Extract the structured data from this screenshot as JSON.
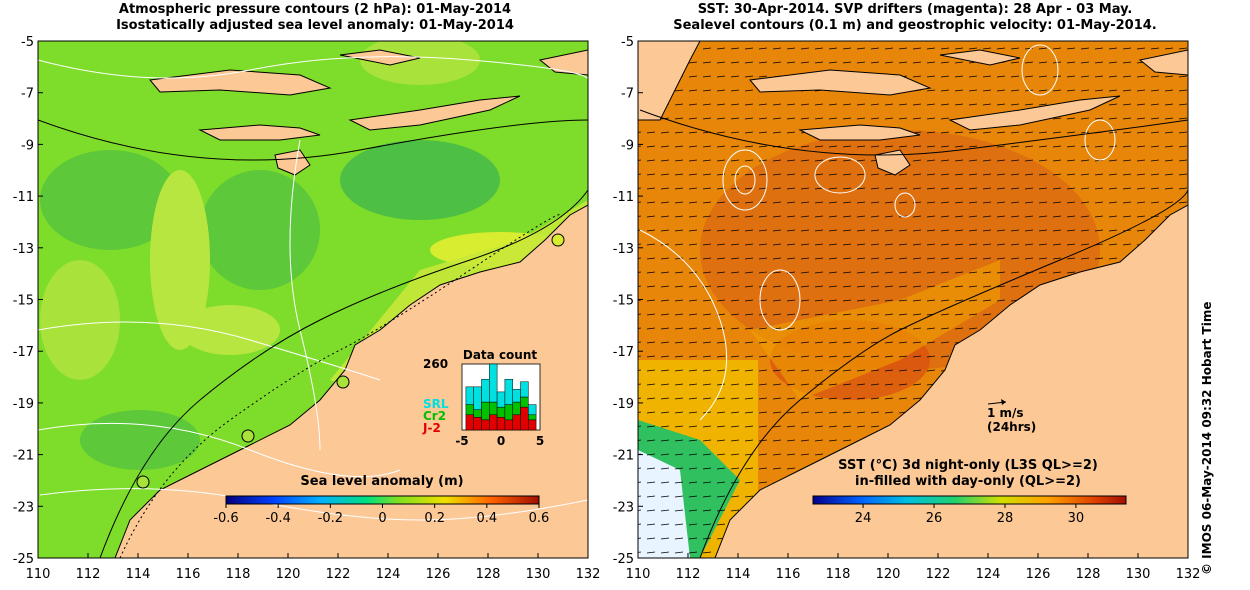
{
  "left_panel": {
    "title_line1": "Atmospheric pressure contours (2 hPa): 01-May-2014",
    "title_line2": "Isostatically adjusted sea level anomaly: 01-May-2014",
    "y_ticks": [
      "-5",
      "-7",
      "-9",
      "-11",
      "-13",
      "-15",
      "-17",
      "-19",
      "-21",
      "-23",
      "-25"
    ],
    "x_ticks": [
      "110",
      "112",
      "114",
      "116",
      "118",
      "120",
      "122",
      "124",
      "126",
      "128",
      "130",
      "132"
    ],
    "colorbar_label": "Sea level anomaly (m)",
    "colorbar_ticks": [
      "-0.6",
      "-0.4",
      "-0.2",
      "0",
      "0.2",
      "0.4",
      "0.6"
    ],
    "inset": {
      "title": "Data count",
      "y_max_label": "260",
      "x_ticks": [
        "-5",
        "0",
        "5"
      ],
      "legend": [
        {
          "label": "SRL",
          "color": "#00e0e0"
        },
        {
          "label": "Cr2",
          "color": "#00c000"
        },
        {
          "label": "J-2",
          "color": "#e00000"
        }
      ],
      "bins": [
        {
          "x": -4,
          "red": 60,
          "green": 40,
          "cyan": 70
        },
        {
          "x": -3,
          "red": 50,
          "green": 30,
          "cyan": 90
        },
        {
          "x": -2,
          "red": 40,
          "green": 70,
          "cyan": 90
        },
        {
          "x": -1,
          "red": 60,
          "green": 50,
          "cyan": 150
        },
        {
          "x": 0,
          "red": 50,
          "green": 40,
          "cyan": 60
        },
        {
          "x": 1,
          "red": 40,
          "green": 60,
          "cyan": 100
        },
        {
          "x": 2,
          "red": 60,
          "green": 50,
          "cyan": 50
        },
        {
          "x": 3,
          "red": 90,
          "green": 40,
          "cyan": 60
        },
        {
          "x": 4,
          "red": 40,
          "green": 20,
          "cyan": 40
        }
      ]
    }
  },
  "right_panel": {
    "title_line1": "SST: 30-Apr-2014. SVP drifters (magenta): 28 Apr - 03 May.",
    "title_line2": "Sealevel contours (0.1 m) and geostrophic velocity: 01-May-2014.",
    "y_ticks": [
      "-5",
      "-7",
      "-9",
      "-11",
      "-13",
      "-15",
      "-17",
      "-19",
      "-21",
      "-23",
      "-25"
    ],
    "x_ticks": [
      "110",
      "112",
      "114",
      "116",
      "118",
      "120",
      "122",
      "124",
      "126",
      "128",
      "130",
      "132"
    ],
    "velocity_scale_label": "1 m/s",
    "velocity_scale_sub": "(24hrs)",
    "colorbar_title_line1": "SST (°C)  3d night-only (L3S QL>=2)",
    "colorbar_title_line2": "in-filled with day-only (QL>=2)",
    "colorbar_ticks": [
      "24",
      "26",
      "28",
      "30"
    ]
  },
  "credit": "© IMOS 06-May-2014 09:32 Hobart Time",
  "colors": {
    "land": "#fbc896",
    "sla_ocean": "#7edc2a",
    "sst_ocean": "#e8860a",
    "contour_white": "#ffffff",
    "coast": "#000000"
  }
}
